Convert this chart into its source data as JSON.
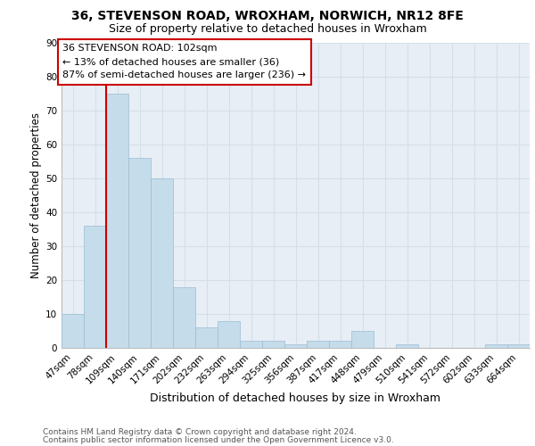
{
  "title_line1": "36, STEVENSON ROAD, WROXHAM, NORWICH, NR12 8FE",
  "title_line2": "Size of property relative to detached houses in Wroxham",
  "xlabel": "Distribution of detached houses by size in Wroxham",
  "ylabel": "Number of detached properties",
  "categories": [
    "47sqm",
    "78sqm",
    "109sqm",
    "140sqm",
    "171sqm",
    "202sqm",
    "232sqm",
    "263sqm",
    "294sqm",
    "325sqm",
    "356sqm",
    "387sqm",
    "417sqm",
    "448sqm",
    "479sqm",
    "510sqm",
    "541sqm",
    "572sqm",
    "602sqm",
    "633sqm",
    "664sqm"
  ],
  "values": [
    10,
    36,
    75,
    56,
    50,
    18,
    6,
    8,
    2,
    2,
    1,
    2,
    2,
    5,
    0,
    1,
    0,
    0,
    0,
    1,
    1
  ],
  "bar_color": "#c5dcea",
  "bar_edge_color": "#9bbdd4",
  "grid_color": "#d5dfe8",
  "background_color": "#e8eef5",
  "vline_color": "#cc0000",
  "vline_position": 1.5,
  "annotation_text": "36 STEVENSON ROAD: 102sqm\n← 13% of detached houses are smaller (36)\n87% of semi-detached houses are larger (236) →",
  "annotation_box_edgecolor": "#cc0000",
  "ylim_max": 90,
  "yticks": [
    0,
    10,
    20,
    30,
    40,
    50,
    60,
    70,
    80,
    90
  ],
  "footer_line1": "Contains HM Land Registry data © Crown copyright and database right 2024.",
  "footer_line2": "Contains public sector information licensed under the Open Government Licence v3.0.",
  "title_fontsize": 10,
  "subtitle_fontsize": 9,
  "ylabel_fontsize": 8.5,
  "xlabel_fontsize": 9,
  "tick_fontsize": 7.5,
  "annotation_fontsize": 8,
  "footer_fontsize": 6.5
}
